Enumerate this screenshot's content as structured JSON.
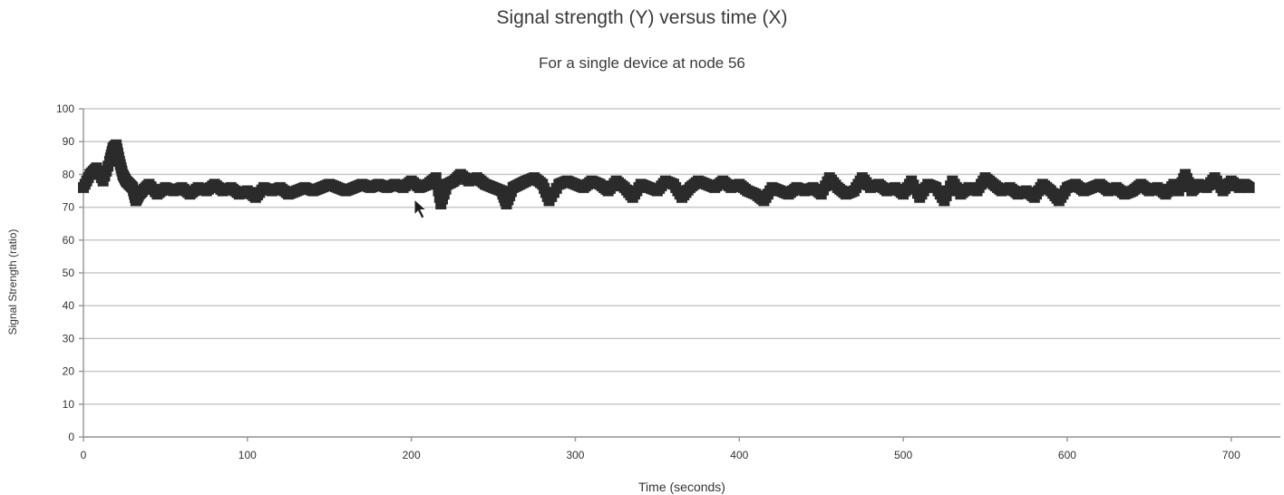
{
  "chart_data": {
    "type": "scatter",
    "title": "Signal strength (Y) versus time (X)",
    "subtitle": "For a single device at node 56",
    "xlabel": "Time (seconds)",
    "ylabel": "Signal Strength (ratio)",
    "xlim": [
      0,
      730
    ],
    "ylim": [
      0,
      100
    ],
    "x_ticks": [
      "0",
      "100",
      "200",
      "300",
      "400",
      "500",
      "600",
      "700"
    ],
    "y_ticks": [
      "0",
      "10",
      "20",
      "30",
      "40",
      "50",
      "60",
      "70",
      "80",
      "90",
      "100"
    ],
    "grid": "horizontal",
    "legend": "none",
    "marker": "square",
    "color": "#2b2b2b",
    "series": [
      {
        "x": [
          0,
          4,
          8,
          12,
          16,
          18,
          20,
          22,
          24,
          26,
          28,
          30,
          32,
          34,
          36,
          40,
          45,
          50,
          55,
          60,
          65,
          70,
          75,
          80,
          85,
          90,
          95,
          100,
          105,
          110,
          115,
          120,
          125,
          130,
          135,
          140,
          145,
          150,
          155,
          160,
          165,
          170,
          175,
          180,
          185,
          190,
          195,
          200,
          205,
          210,
          215,
          218,
          222,
          226,
          230,
          235,
          240,
          245,
          250,
          255,
          258,
          262,
          266,
          270,
          275,
          280,
          284,
          290,
          295,
          300,
          305,
          310,
          315,
          320,
          325,
          330,
          335,
          340,
          345,
          350,
          355,
          360,
          365,
          370,
          375,
          380,
          385,
          390,
          395,
          400,
          405,
          410,
          415,
          420,
          425,
          430,
          435,
          440,
          445,
          450,
          455,
          460,
          465,
          470,
          475,
          480,
          485,
          490,
          495,
          500,
          505,
          510,
          515,
          520,
          525,
          530,
          535,
          540,
          545,
          550,
          555,
          560,
          565,
          570,
          575,
          580,
          585,
          590,
          595,
          600,
          605,
          610,
          615,
          620,
          625,
          630,
          635,
          640,
          645,
          650,
          655,
          660,
          665,
          668,
          672,
          676,
          680,
          685,
          690,
          695,
          700,
          705,
          708,
          711
        ],
        "y": [
          76,
          80,
          82,
          78,
          84,
          88,
          89,
          84,
          80,
          78,
          77,
          76,
          72,
          74,
          75,
          77,
          74,
          76,
          75,
          76,
          74,
          76,
          75,
          77,
          75,
          76,
          74,
          75,
          73,
          76,
          75,
          76,
          74,
          75,
          76,
          75,
          76,
          77,
          76,
          75,
          76,
          77,
          76,
          77,
          76,
          77,
          76,
          78,
          76,
          77,
          79,
          71,
          77,
          78,
          80,
          78,
          79,
          77,
          76,
          75,
          71,
          76,
          77,
          78,
          79,
          77,
          72,
          77,
          78,
          77,
          76,
          78,
          77,
          75,
          78,
          76,
          73,
          77,
          76,
          75,
          78,
          77,
          73,
          76,
          78,
          77,
          76,
          78,
          76,
          77,
          75,
          74,
          72,
          76,
          75,
          74,
          76,
          75,
          76,
          74,
          79,
          76,
          74,
          75,
          79,
          76,
          77,
          75,
          76,
          74,
          78,
          73,
          77,
          76,
          72,
          78,
          74,
          76,
          75,
          79,
          77,
          75,
          76,
          74,
          75,
          73,
          77,
          75,
          72,
          76,
          77,
          75,
          76,
          77,
          75,
          76,
          74,
          75,
          77,
          75,
          76,
          74,
          77,
          75,
          80,
          75,
          77,
          76,
          79,
          75,
          78,
          76,
          77,
          76
        ]
      }
    ]
  }
}
